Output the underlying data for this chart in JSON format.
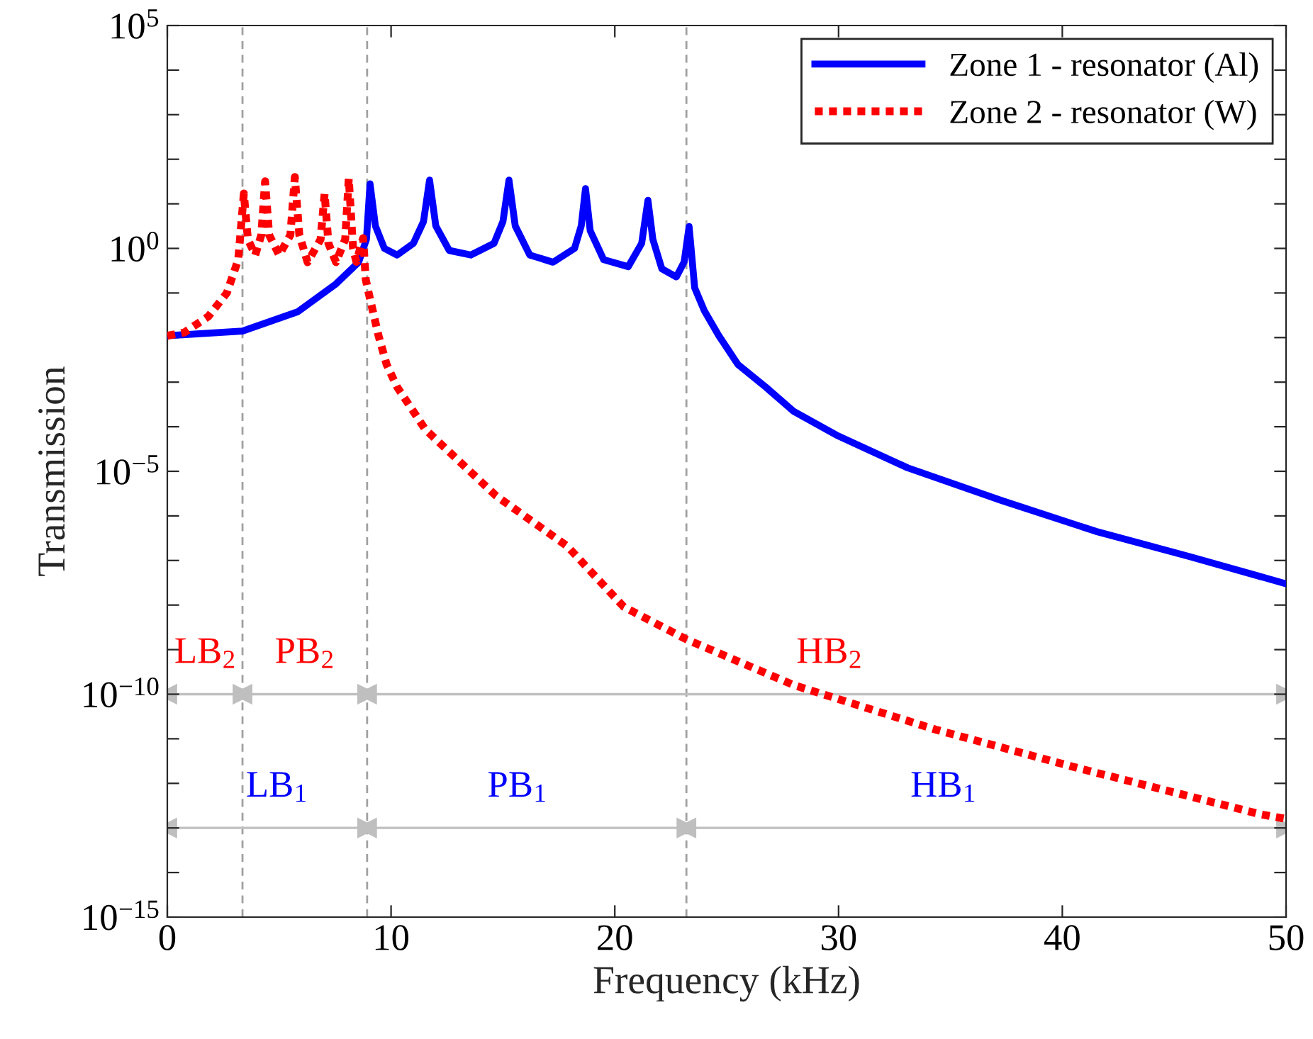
{
  "chart_data": {
    "type": "line",
    "xlabel": "Frequency (kHz)",
    "ylabel": "Transmission",
    "log": "y",
    "xlim": [
      0,
      50
    ],
    "xticks": [
      0,
      10,
      20,
      30,
      40,
      50
    ],
    "ylim": [
      1e-15,
      100000.0
    ],
    "yticks": [
      {
        "value": 1e-15,
        "label": "10$^{−15}$"
      },
      {
        "value": 1e-14,
        "label": null
      },
      {
        "value": 1e-13,
        "label": null
      },
      {
        "value": 1e-12,
        "label": null
      },
      {
        "value": 1e-11,
        "label": null
      },
      {
        "value": 1e-10,
        "label": "10$^{−10}$"
      },
      {
        "value": 1e-09,
        "label": null
      },
      {
        "value": 1e-08,
        "label": null
      },
      {
        "value": 1e-07,
        "label": null
      },
      {
        "value": 1e-06,
        "label": null
      },
      {
        "value": 1e-05,
        "label": "10$^{−5}$"
      },
      {
        "value": 0.0001,
        "label": null
      },
      {
        "value": 0.001,
        "label": null
      },
      {
        "value": 0.01,
        "label": null
      },
      {
        "value": 0.1,
        "label": null
      },
      {
        "value": 1,
        "label": "10$^{0}$"
      },
      {
        "value": 10,
        "label": null
      },
      {
        "value": 100,
        "label": null
      },
      {
        "value": 1000,
        "label": null
      },
      {
        "value": 10000,
        "label": null
      },
      {
        "value": 100000.0,
        "label": "10$^{5}$"
      }
    ],
    "grid": false,
    "legend": "top right",
    "series": [
      {
        "name": "Zone 1 - resonator (Al)",
        "color": "#0000ff",
        "line_style": "solid",
        "x": [
          0,
          3.36,
          5.83,
          7.54,
          8.55,
          8.9,
          9.06,
          9.3,
          9.7,
          10.27,
          11.0,
          11.45,
          11.72,
          12.0,
          12.6,
          13.56,
          14.6,
          15.0,
          15.27,
          15.55,
          16.2,
          17.24,
          18.2,
          18.5,
          18.69,
          18.9,
          19.5,
          20.6,
          21.2,
          21.48,
          21.7,
          22.1,
          22.75,
          23.1,
          23.32,
          23.57,
          24.0,
          24.65,
          25.5,
          26.74,
          28.0,
          29.9,
          33.08,
          37.3,
          41.5,
          45.75,
          50
        ],
        "values": [
          0.011,
          0.014,
          0.038,
          0.16,
          0.49,
          1.6,
          28,
          3.2,
          1.0,
          0.71,
          1.3,
          4,
          34,
          3.2,
          0.9,
          0.71,
          1.3,
          4,
          34,
          3.2,
          0.71,
          0.49,
          1.0,
          3.2,
          22,
          2.5,
          0.56,
          0.39,
          1.3,
          12,
          1.6,
          0.35,
          0.23,
          0.5,
          3.1,
          0.13,
          0.04,
          0.011,
          0.0025,
          0.00078,
          0.00022,
          6.5e-05,
          1.2e-05,
          2.2e-06,
          4.5e-07,
          1.2e-07,
          3e-08
        ]
      },
      {
        "name": "Zone 2 - resonator (W)",
        "color": "#ff0000",
        "line_style": "dotted",
        "x": [
          0,
          0.76,
          1.84,
          2.66,
          3.17,
          3.42,
          3.6,
          3.93,
          4.2,
          4.37,
          4.55,
          5.0,
          5.5,
          5.7,
          5.9,
          6.27,
          6.85,
          7.03,
          7.2,
          7.54,
          7.95,
          8.11,
          8.3,
          8.45,
          8.75,
          8.87,
          9.0,
          9.44,
          9.8,
          10.27,
          11.53,
          14.7,
          17.87,
          20.4,
          23.2,
          28.0,
          34.35,
          40.7,
          48.9,
          50
        ],
        "values": [
          0.011,
          0.013,
          0.03,
          0.1,
          0.56,
          17,
          1.6,
          0.71,
          2,
          32,
          2,
          0.71,
          2,
          40,
          2,
          0.49,
          1.6,
          17,
          1.3,
          0.49,
          1.6,
          37,
          1.0,
          0.5,
          1.7,
          0.2,
          0.1,
          0.011,
          0.0025,
          0.00078,
          8.7e-05,
          2.8e-06,
          2.1e-07,
          9.1e-09,
          1.7e-09,
          1.6e-10,
          1.6e-11,
          2.2e-12,
          2e-13,
          1.6e-13
        ]
      }
    ],
    "ref_lines": [
      {
        "axis": "x",
        "value": 3.36,
        "color": "#a0a0a0",
        "line_style": "dashed"
      },
      {
        "axis": "x",
        "value": 8.93,
        "color": "#a0a0a0",
        "line_style": "dashed"
      },
      {
        "axis": "x",
        "value": 23.2,
        "color": "#a0a0a0",
        "line_style": "dashed"
      },
      {
        "axis": "y",
        "value": 1e-10,
        "color": "#bfbfbf",
        "line_style": "solid"
      },
      {
        "axis": "y",
        "value": 1e-13,
        "color": "#bfbfbf",
        "line_style": "solid"
      }
    ],
    "annotations": [
      "LB$_{2}$",
      "PB$_{2}$",
      "HB$_{2}$",
      "LB$_{1}$",
      "PB$_{1}$",
      "HB$_{1}$"
    ]
  }
}
